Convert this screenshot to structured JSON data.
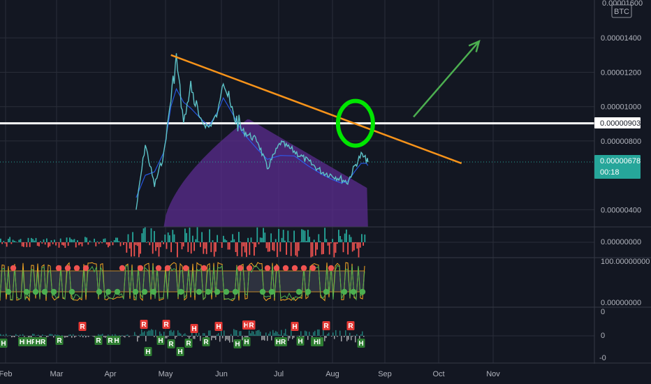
{
  "header": {
    "top_value": "0.00001600",
    "currency": "BTC"
  },
  "price_axis": {
    "ticks": [
      "0.00001400",
      "0.00001200",
      "0.00001000",
      "0.00000800",
      "0.00000400"
    ],
    "tick_values": [
      1400,
      1200,
      1000,
      800,
      400
    ]
  },
  "horizontal_level": {
    "label": "0.00000903",
    "value": 903,
    "color": "#ffffff"
  },
  "current_price": {
    "label": "0.00000678",
    "countdown": "00:18",
    "value": 678,
    "color": "#26a69a"
  },
  "panes": {
    "histogram": {
      "zero_label": "0.00000000"
    },
    "oscillator": {
      "top_label": "100.00000000",
      "bottom_label": "0.00000000"
    },
    "signals": {
      "ticks": [
        "0",
        "0",
        "-0"
      ]
    }
  },
  "time_axis": {
    "months": [
      "Feb",
      "Mar",
      "Apr",
      "May",
      "Jun",
      "Jul",
      "Aug",
      "Sep",
      "Oct",
      "Nov"
    ]
  },
  "signal_marks": {
    "r_label": "R",
    "h_label": "H",
    "hr_label": "HR",
    "hl_label": "Hl",
    "top_row": [
      "R",
      "R",
      "R",
      "H",
      "H",
      "HR",
      "R",
      "H",
      "R",
      "R"
    ],
    "bottom_row": [
      "H",
      "HR",
      "HR",
      "HR",
      "R",
      "R",
      "R",
      "H",
      "H",
      "H",
      "R",
      "H",
      "R",
      "R",
      "H",
      "H",
      "HR",
      "H",
      "Hl",
      "H"
    ]
  },
  "colors": {
    "background": "#131722",
    "grid": "#2a2e39",
    "price_line": "#5dc3c8",
    "ma_line": "#2962ff",
    "volume_area": "#5b2c8f",
    "trendline": "#f7931a",
    "projection_arrow": "#4caf50",
    "circle": "#00e600",
    "bull": "#26a69a",
    "bear": "#ef5350",
    "osc_orange": "#f5a623",
    "osc_green": "#4caf50",
    "signal_red": "#e53935",
    "signal_green": "#2e7d32"
  },
  "chart_data": {
    "type": "line",
    "x_unit": "date (2019)",
    "y_unit": "BTC",
    "series": [
      {
        "values": [
          [
            "2019-04-15",
            4e-06
          ],
          [
            "2019-04-20",
            7.8e-06
          ],
          [
            "2019-04-25",
            5.4e-06
          ],
          [
            "2019-04-30",
            7.2e-06
          ],
          [
            "2019-05-04",
            1.05e-05
          ],
          [
            "2019-05-07",
            1.28e-05
          ],
          [
            "2019-05-11",
            9e-06
          ],
          [
            "2019-05-15",
            1.12e-05
          ],
          [
            "2019-05-20",
            9.2e-06
          ],
          [
            "2019-05-25",
            8.8e-06
          ],
          [
            "2019-05-30",
            9.6e-06
          ],
          [
            "2019-06-02",
            1.18e-05
          ],
          [
            "2019-06-06",
            9.8e-06
          ],
          [
            "2019-06-12",
            8.6e-06
          ],
          [
            "2019-06-20",
            8e-06
          ],
          [
            "2019-06-25",
            6.4e-06
          ],
          [
            "2019-07-02",
            7.9e-06
          ],
          [
            "2019-07-10",
            7.4e-06
          ],
          [
            "2019-07-18",
            6.8e-06
          ],
          [
            "2019-07-26",
            6.2e-06
          ],
          [
            "2019-08-01",
            6e-06
          ],
          [
            "2019-08-06",
            5.8e-06
          ],
          [
            "2019-08-10",
            5.6e-06
          ],
          [
            "2019-08-14",
            6.5e-06
          ],
          [
            "2019-08-18",
            7.2e-06
          ],
          [
            "2019-08-21",
            6.9e-06
          ],
          [
            "2019-08-22",
            6.78e-06
          ]
        ]
      }
    ],
    "ylim": [
      3e-06,
      1.6e-05
    ],
    "xlim": [
      "2019-02-01",
      "2019-11-30"
    ],
    "reference_line": 9.03e-06,
    "trendline": [
      [
        "2019-05-04",
        1.3e-05
      ],
      [
        "2019-10-14",
        6.7e-06
      ]
    ],
    "arrow": [
      [
        "2019-09-17",
        9.4e-06
      ],
      [
        "2019-10-24",
        1.38e-05
      ]
    ]
  }
}
